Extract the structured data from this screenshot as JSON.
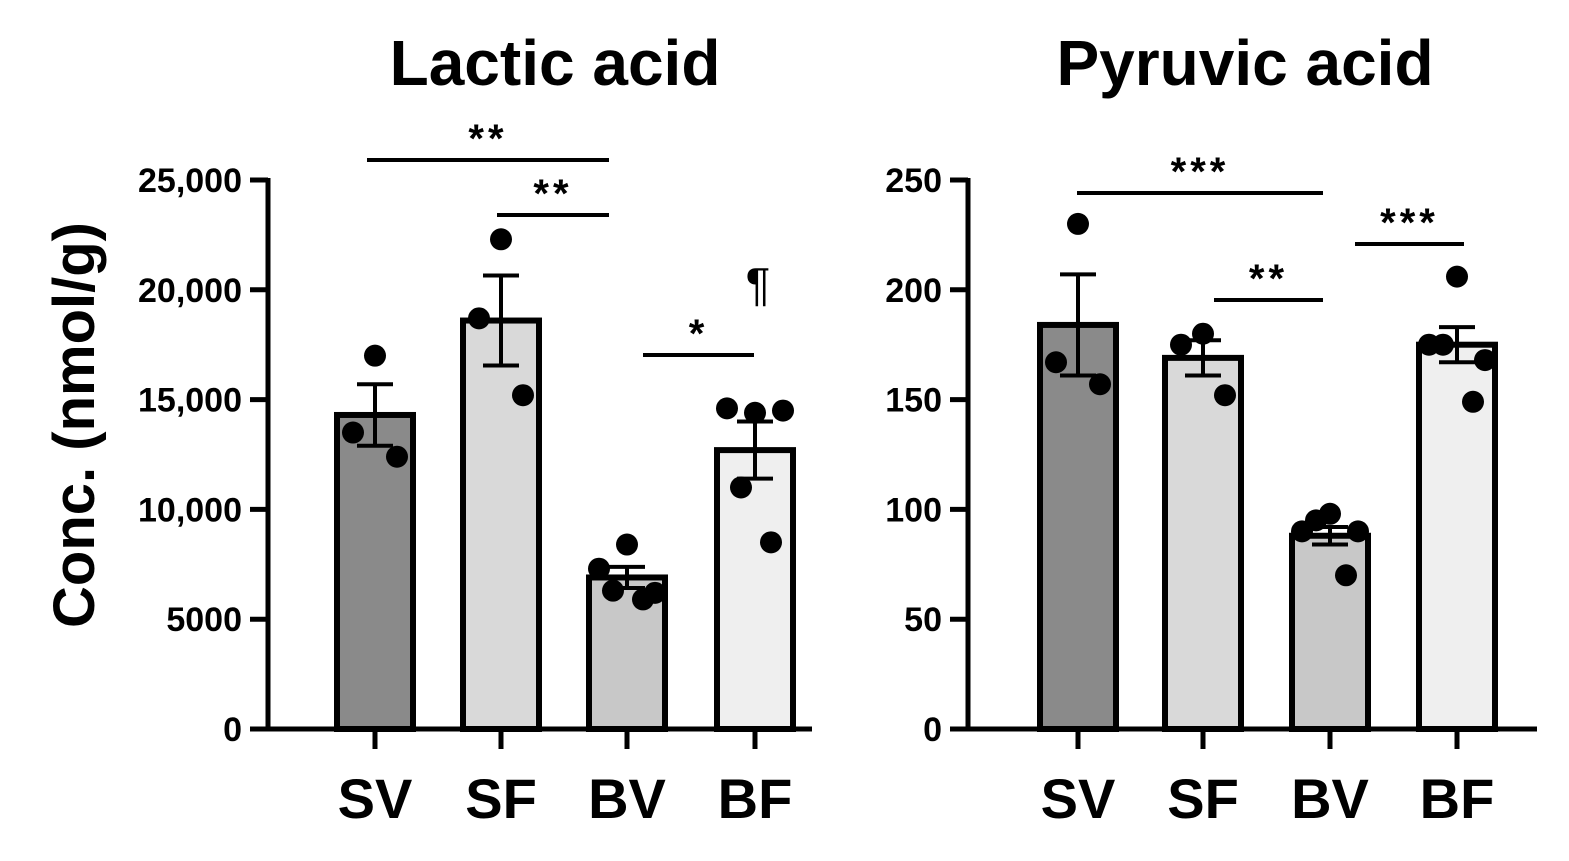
{
  "chart_data": [
    {
      "type": "bar",
      "title": "Lactic acid",
      "ylabel": "Conc. (nmol/g)",
      "xlabel": "",
      "categories": [
        "SV",
        "SF",
        "BV",
        "BF"
      ],
      "bar_colors": [
        "#8a8a8a",
        "#d9d9d9",
        "#c8c8c8",
        "#efefef"
      ],
      "ylim": [
        0,
        25000
      ],
      "yticks": [
        0,
        5000,
        10000,
        15000,
        20000,
        25000
      ],
      "ytick_labels": [
        "0",
        "5000",
        "10,000",
        "15,000",
        "20,000",
        "25,000"
      ],
      "values": [
        14300,
        18600,
        6900,
        12700
      ],
      "sem": [
        1400,
        2050,
        480,
        1300
      ],
      "points": [
        [
          17000,
          13500,
          12400
        ],
        [
          22300,
          18700,
          15200
        ],
        [
          8400,
          7300,
          6200,
          6300,
          5900
        ],
        [
          14400,
          14600,
          14500,
          11000,
          8500
        ]
      ],
      "significance": [
        {
          "from": "SV",
          "to": "BV",
          "label": "**"
        },
        {
          "from": "SF",
          "to": "BV",
          "label": "**"
        },
        {
          "from": "BV",
          "to": "BF",
          "label": "*"
        }
      ],
      "annotations": [
        {
          "category": "BF",
          "label": "¶"
        }
      ]
    },
    {
      "type": "bar",
      "title": "Pyruvic acid",
      "ylabel": "",
      "xlabel": "",
      "categories": [
        "SV",
        "SF",
        "BV",
        "BF"
      ],
      "bar_colors": [
        "#8a8a8a",
        "#d9d9d9",
        "#c8c8c8",
        "#efefef"
      ],
      "ylim": [
        0,
        250
      ],
      "yticks": [
        0,
        50,
        100,
        150,
        200,
        250
      ],
      "ytick_labels": [
        "0",
        "50",
        "100",
        "150",
        "200",
        "250"
      ],
      "values": [
        184,
        169,
        88,
        175
      ],
      "sem": [
        23,
        8,
        4,
        8
      ],
      "points": [
        [
          230,
          167,
          157
        ],
        [
          180,
          175,
          152
        ],
        [
          98,
          90,
          90,
          95,
          70
        ],
        [
          206,
          175,
          168,
          175,
          149
        ]
      ],
      "significance": [
        {
          "from": "SV",
          "to": "BV",
          "label": "***"
        },
        {
          "from": "SF",
          "to": "BV",
          "label": "**"
        },
        {
          "from": "BV",
          "to": "BF",
          "label": "***"
        }
      ],
      "annotations": []
    }
  ]
}
